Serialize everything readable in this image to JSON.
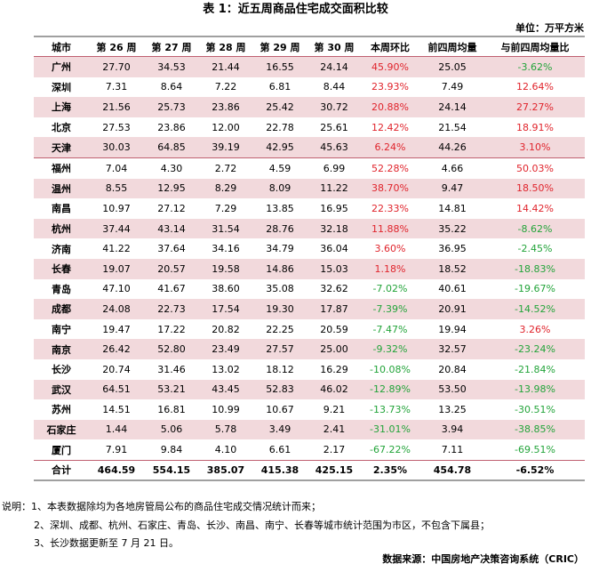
{
  "title": "表 1：近五周商品住宅成交面积比较",
  "unit": "单位：万平方米",
  "headers": [
    "城市",
    "第 26 周",
    "第 27 周",
    "第 28 周",
    "第 29 周",
    "第 30 周",
    "本周环比",
    "前四周均量",
    "与前四周均量比"
  ],
  "rows": [
    {
      "city": "广州",
      "w26": "27.70",
      "w27": "34.53",
      "w28": "21.44",
      "w29": "16.55",
      "w30": "24.14",
      "wow": "45.90%",
      "avg4": "25.05",
      "vs_avg": "-3.62%"
    },
    {
      "city": "深圳",
      "w26": "7.31",
      "w27": "8.64",
      "w28": "7.22",
      "w29": "6.81",
      "w30": "8.44",
      "wow": "23.93%",
      "avg4": "7.49",
      "vs_avg": "12.64%"
    },
    {
      "city": "上海",
      "w26": "21.56",
      "w27": "25.73",
      "w28": "23.86",
      "w29": "25.42",
      "w30": "30.72",
      "wow": "20.88%",
      "avg4": "24.14",
      "vs_avg": "27.27%"
    },
    {
      "city": "北京",
      "w26": "27.53",
      "w27": "23.86",
      "w28": "12.00",
      "w29": "22.78",
      "w30": "25.61",
      "wow": "12.42%",
      "avg4": "21.54",
      "vs_avg": "18.91%"
    },
    {
      "city": "天津",
      "w26": "30.03",
      "w27": "64.85",
      "w28": "39.19",
      "w29": "42.95",
      "w30": "45.63",
      "wow": "6.24%",
      "avg4": "44.26",
      "vs_avg": "3.10%"
    },
    {
      "city": "福州",
      "w26": "7.04",
      "w27": "4.30",
      "w28": "2.72",
      "w29": "4.59",
      "w30": "6.99",
      "wow": "52.28%",
      "avg4": "4.66",
      "vs_avg": "50.03%"
    },
    {
      "city": "温州",
      "w26": "8.55",
      "w27": "12.95",
      "w28": "8.29",
      "w29": "8.09",
      "w30": "11.22",
      "wow": "38.70%",
      "avg4": "9.47",
      "vs_avg": "18.50%"
    },
    {
      "city": "南昌",
      "w26": "10.97",
      "w27": "27.12",
      "w28": "7.29",
      "w29": "13.85",
      "w30": "16.95",
      "wow": "22.33%",
      "avg4": "14.81",
      "vs_avg": "14.42%"
    },
    {
      "city": "杭州",
      "w26": "37.44",
      "w27": "43.14",
      "w28": "31.54",
      "w29": "28.76",
      "w30": "32.18",
      "wow": "11.88%",
      "avg4": "35.22",
      "vs_avg": "-8.62%"
    },
    {
      "city": "济南",
      "w26": "41.22",
      "w27": "37.64",
      "w28": "34.16",
      "w29": "34.79",
      "w30": "36.04",
      "wow": "3.60%",
      "avg4": "36.95",
      "vs_avg": "-2.45%"
    },
    {
      "city": "长春",
      "w26": "19.07",
      "w27": "20.57",
      "w28": "19.58",
      "w29": "14.86",
      "w30": "15.03",
      "wow": "1.18%",
      "avg4": "18.52",
      "vs_avg": "-18.83%"
    },
    {
      "city": "青岛",
      "w26": "47.10",
      "w27": "41.67",
      "w28": "38.60",
      "w29": "35.08",
      "w30": "32.62",
      "wow": "-7.02%",
      "avg4": "40.61",
      "vs_avg": "-19.67%"
    },
    {
      "city": "成都",
      "w26": "24.08",
      "w27": "22.73",
      "w28": "17.54",
      "w29": "19.30",
      "w30": "17.87",
      "wow": "-7.39%",
      "avg4": "20.91",
      "vs_avg": "-14.52%"
    },
    {
      "city": "南宁",
      "w26": "19.47",
      "w27": "17.22",
      "w28": "20.82",
      "w29": "22.25",
      "w30": "20.59",
      "wow": "-7.47%",
      "avg4": "19.94",
      "vs_avg": "3.26%"
    },
    {
      "city": "南京",
      "w26": "26.42",
      "w27": "52.80",
      "w28": "23.49",
      "w29": "27.57",
      "w30": "25.00",
      "wow": "-9.32%",
      "avg4": "32.57",
      "vs_avg": "-23.24%"
    },
    {
      "city": "长沙",
      "w26": "20.74",
      "w27": "31.46",
      "w28": "13.02",
      "w29": "18.12",
      "w30": "16.29",
      "wow": "-10.08%",
      "avg4": "20.84",
      "vs_avg": "-21.84%"
    },
    {
      "city": "武汉",
      "w26": "64.51",
      "w27": "53.21",
      "w28": "43.45",
      "w29": "52.83",
      "w30": "46.02",
      "wow": "-12.89%",
      "avg4": "53.50",
      "vs_avg": "-13.98%"
    },
    {
      "city": "苏州",
      "w26": "14.51",
      "w27": "16.81",
      "w28": "10.99",
      "w29": "10.67",
      "w30": "9.21",
      "wow": "-13.73%",
      "avg4": "13.25",
      "vs_avg": "-30.51%"
    },
    {
      "city": "石家庄",
      "w26": "1.44",
      "w27": "5.06",
      "w28": "5.78",
      "w29": "3.49",
      "w30": "2.41",
      "wow": "-31.01%",
      "avg4": "3.94",
      "vs_avg": "-38.85%"
    },
    {
      "city": "厦门",
      "w26": "7.91",
      "w27": "9.84",
      "w28": "4.10",
      "w29": "6.61",
      "w30": "2.17",
      "wow": "-67.22%",
      "avg4": "7.11",
      "vs_avg": "-69.51%"
    }
  ],
  "total": {
    "city": "合计",
    "w26": "464.59",
    "w27": "554.15",
    "w28": "385.07",
    "w29": "415.38",
    "w30": "425.15",
    "wow": "2.35%",
    "avg4": "454.78",
    "vs_avg": "-6.52%"
  },
  "notes": [
    "说明：1、本表数据除均为各地房管局公布的商品住宅成交情况统计而来；",
    "2、深圳、成都、杭州、石家庄、青岛、长沙、南昌、南宁、长春等城市统计范围为市区，不包含下属县；",
    "3、长沙数据更新至 7 月 21 日。"
  ],
  "source": "数据来源：中国房地产决策咨询系统（CRIC）",
  "colors": {
    "positive": "#e0242c",
    "negative": "#23a43a",
    "highlight_row": "#f2d9dc"
  }
}
